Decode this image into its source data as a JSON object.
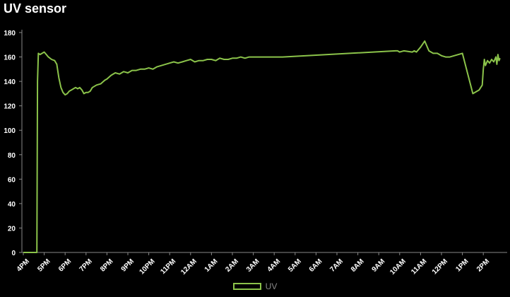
{
  "title": "UV sensor",
  "colors": {
    "line": "#8bc34a",
    "axis": "#888888",
    "grid": "#ffffff"
  },
  "chart_data": {
    "type": "line",
    "title": "UV sensor",
    "xlabel": "",
    "ylabel": "",
    "ylim": [
      0,
      180
    ],
    "yticks": [
      0,
      20,
      40,
      60,
      80,
      100,
      120,
      140,
      160,
      180
    ],
    "xlim": [
      0,
      23.0
    ],
    "xtick_labels": [
      "4PM",
      "5PM",
      "6PM",
      "7PM",
      "8PM",
      "9PM",
      "10PM",
      "11PM",
      "12AM",
      "1AM",
      "2AM",
      "3AM",
      "4AM",
      "5AM",
      "6AM",
      "7AM",
      "8AM",
      "9AM",
      "10AM",
      "11AM",
      "12PM",
      "1PM",
      "2PM"
    ],
    "grid": false,
    "legend": "bottom-center",
    "series": [
      {
        "name": "UV",
        "x": [
          0.0,
          0.65,
          0.68,
          0.72,
          0.8,
          0.9,
          1.0,
          1.1,
          1.2,
          1.35,
          1.5,
          1.6,
          1.7,
          1.8,
          1.9,
          2.0,
          2.1,
          2.2,
          2.3,
          2.4,
          2.5,
          2.6,
          2.7,
          2.8,
          2.9,
          3.0,
          3.1,
          3.2,
          3.3,
          3.5,
          3.7,
          3.9,
          4.0,
          4.2,
          4.4,
          4.6,
          4.8,
          5.0,
          5.2,
          5.4,
          5.6,
          5.8,
          6.0,
          6.2,
          6.4,
          6.6,
          6.8,
          7.0,
          7.2,
          7.4,
          7.6,
          7.8,
          8.0,
          8.2,
          8.4,
          8.6,
          8.8,
          9.0,
          9.2,
          9.4,
          9.6,
          9.8,
          10.0,
          10.2,
          10.4,
          10.6,
          10.8,
          11.0,
          11.2,
          11.4,
          11.6,
          11.8,
          12.0,
          12.2,
          12.4,
          17.8,
          17.9,
          18.0,
          18.2,
          18.6,
          18.7,
          18.8,
          19.0,
          19.2,
          19.4,
          19.6,
          19.8,
          20.0,
          20.2,
          20.4,
          21.0,
          21.5,
          21.8,
          21.95,
          22.0,
          22.05,
          22.1,
          22.2,
          22.3,
          22.4,
          22.5,
          22.6,
          22.65,
          22.7,
          22.75,
          22.8
        ],
        "values": [
          0,
          0,
          140,
          163,
          162,
          163,
          164,
          162,
          160,
          158,
          157,
          154,
          143,
          135,
          131,
          129,
          130,
          132,
          133,
          134,
          135,
          134,
          135,
          133,
          130,
          131,
          131,
          132,
          135,
          137,
          138,
          141,
          142,
          145,
          147,
          146,
          148,
          147,
          149,
          149,
          150,
          150,
          151,
          150,
          152,
          153,
          154,
          155,
          156,
          155,
          156,
          157,
          158,
          156,
          157,
          157,
          158,
          158,
          157,
          159,
          158,
          158,
          159,
          159,
          160,
          159,
          160,
          160,
          160,
          160,
          160,
          160,
          160,
          160,
          160,
          165,
          165,
          164,
          165,
          164,
          165,
          164,
          168,
          173,
          165,
          163,
          163,
          161,
          160,
          160,
          163,
          130,
          133,
          137,
          150,
          158,
          153,
          157,
          155,
          158,
          156,
          160,
          154,
          162,
          157,
          159
        ]
      }
    ]
  },
  "legend": {
    "label": "UV"
  }
}
